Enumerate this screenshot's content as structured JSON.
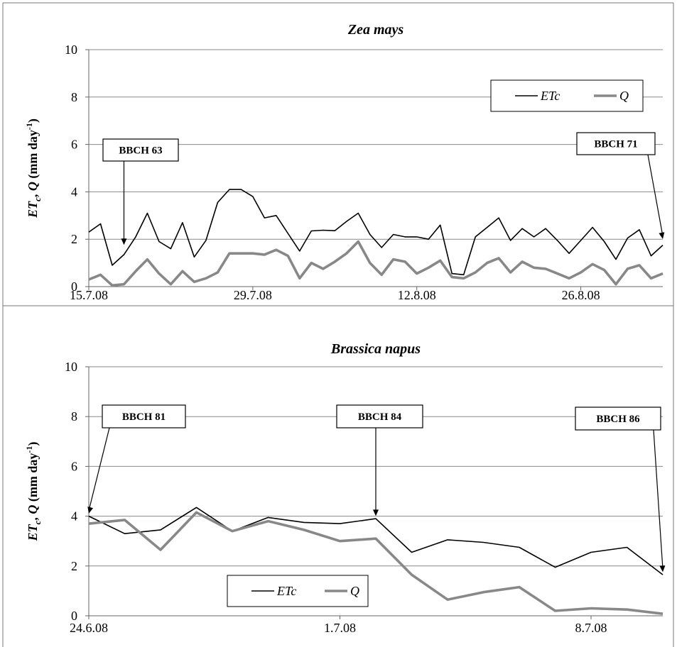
{
  "chart_data": [
    {
      "type": "line",
      "title": "Zea mays",
      "ylabel": {
        "parts": [
          "ET",
          "c",
          ", ",
          "Q",
          " (mm day",
          "-1",
          ")"
        ]
      },
      "ylim": [
        0,
        10
      ],
      "yticks": [
        "0",
        "2",
        "4",
        "6",
        "8",
        "10"
      ],
      "x_ticks": [
        "15.7.08",
        "29.7.08",
        "12.8.08",
        "26.8.08"
      ],
      "x_range": [
        "15.7.08",
        "2.9.08"
      ],
      "grid": true,
      "legend": {
        "placement": "top-right"
      },
      "dates": [
        "15.7.08",
        "16.7.08",
        "17.7.08",
        "18.7.08",
        "19.7.08",
        "20.7.08",
        "21.7.08",
        "22.7.08",
        "23.7.08",
        "24.7.08",
        "25.7.08",
        "26.7.08",
        "27.7.08",
        "28.7.08",
        "29.7.08",
        "30.7.08",
        "31.7.08",
        "1.8.08",
        "2.8.08",
        "3.8.08",
        "4.8.08",
        "5.8.08",
        "6.8.08",
        "7.8.08",
        "8.8.08",
        "9.8.08",
        "10.8.08",
        "11.8.08",
        "12.8.08",
        "13.8.08",
        "14.8.08",
        "15.8.08",
        "16.8.08",
        "17.8.08",
        "18.8.08",
        "19.8.08",
        "20.8.08",
        "21.8.08",
        "22.8.08",
        "23.8.08",
        "24.8.08",
        "25.8.08",
        "26.8.08",
        "27.8.08",
        "28.8.08",
        "29.8.08",
        "30.8.08",
        "31.8.08",
        "1.9.08",
        "2.9.08"
      ],
      "series": [
        {
          "name": "ETc",
          "color": "#000000",
          "values": [
            2.3,
            2.65,
            0.9,
            1.35,
            2.1,
            3.1,
            1.9,
            1.6,
            2.7,
            1.25,
            1.95,
            3.55,
            4.1,
            4.1,
            3.8,
            2.9,
            3.0,
            2.25,
            1.5,
            2.35,
            2.38,
            2.36,
            2.75,
            3.1,
            2.2,
            1.65,
            2.2,
            2.1,
            2.1,
            2.0,
            2.6,
            0.55,
            0.5,
            2.1,
            2.5,
            2.9,
            1.95,
            2.45,
            2.1,
            2.45,
            1.95,
            1.4,
            1.95,
            2.5,
            1.9,
            1.15,
            2.05,
            2.4,
            1.3,
            1.75
          ]
        },
        {
          "name": "Q",
          "color": "#888888",
          "values": [
            0.3,
            0.5,
            0.05,
            0.1,
            0.65,
            1.15,
            0.55,
            0.1,
            0.65,
            0.2,
            0.35,
            0.6,
            1.4,
            1.4,
            1.4,
            1.35,
            1.55,
            1.3,
            0.35,
            1.0,
            0.75,
            1.05,
            1.4,
            1.9,
            1.0,
            0.5,
            1.15,
            1.05,
            0.55,
            0.8,
            1.1,
            0.4,
            0.35,
            0.6,
            1.0,
            1.2,
            0.6,
            1.05,
            0.8,
            0.75,
            0.55,
            0.35,
            0.6,
            0.95,
            0.7,
            0.1,
            0.75,
            0.9,
            0.35,
            0.55
          ]
        }
      ],
      "annotations": [
        {
          "text": "BBCH 63",
          "date": "18.7.08",
          "value": 1.7
        },
        {
          "text": "BBCH 71",
          "date": "2.9.08",
          "value": 1.95
        }
      ]
    },
    {
      "type": "line",
      "title": "Brassica napus",
      "ylabel": {
        "parts": [
          "ET",
          "c",
          ", ",
          "Q",
          " (mm day",
          "-1",
          ")"
        ]
      },
      "ylim": [
        0,
        10
      ],
      "yticks": [
        "0",
        "2",
        "4",
        "6",
        "8",
        "10"
      ],
      "x_ticks": [
        "24.6.08",
        "1.7.08",
        "8.7.08"
      ],
      "x_range": [
        "24.6.08",
        "10.7.08"
      ],
      "grid": true,
      "legend": {
        "placement": "bottom-left"
      },
      "dates": [
        "24.6.08",
        "25.6.08",
        "26.6.08",
        "27.6.08",
        "28.6.08",
        "29.6.08",
        "30.6.08",
        "1.7.08",
        "2.7.08",
        "3.7.08",
        "4.7.08",
        "5.7.08",
        "6.7.08",
        "7.7.08",
        "8.7.08",
        "9.7.08",
        "10.7.08"
      ],
      "series": [
        {
          "name": "ETc",
          "color": "#000000",
          "values": [
            4.0,
            3.3,
            3.45,
            4.35,
            3.4,
            3.95,
            3.75,
            3.7,
            3.9,
            2.55,
            3.05,
            2.95,
            2.75,
            1.95,
            2.55,
            2.75,
            1.65
          ]
        },
        {
          "name": "Q",
          "color": "#888888",
          "values": [
            3.7,
            3.85,
            2.65,
            4.15,
            3.4,
            3.8,
            3.45,
            3.0,
            3.1,
            1.65,
            0.65,
            0.95,
            1.15,
            0.2,
            0.3,
            0.25,
            0.08
          ]
        }
      ],
      "annotations": [
        {
          "text": "BBCH 81",
          "date": "24.6.08",
          "value": 4.05
        },
        {
          "text": "BBCH 84",
          "date": "2.7.08",
          "value": 3.95
        },
        {
          "text": "BBCH 86",
          "date": "10.7.08",
          "value": 1.7
        }
      ]
    }
  ]
}
